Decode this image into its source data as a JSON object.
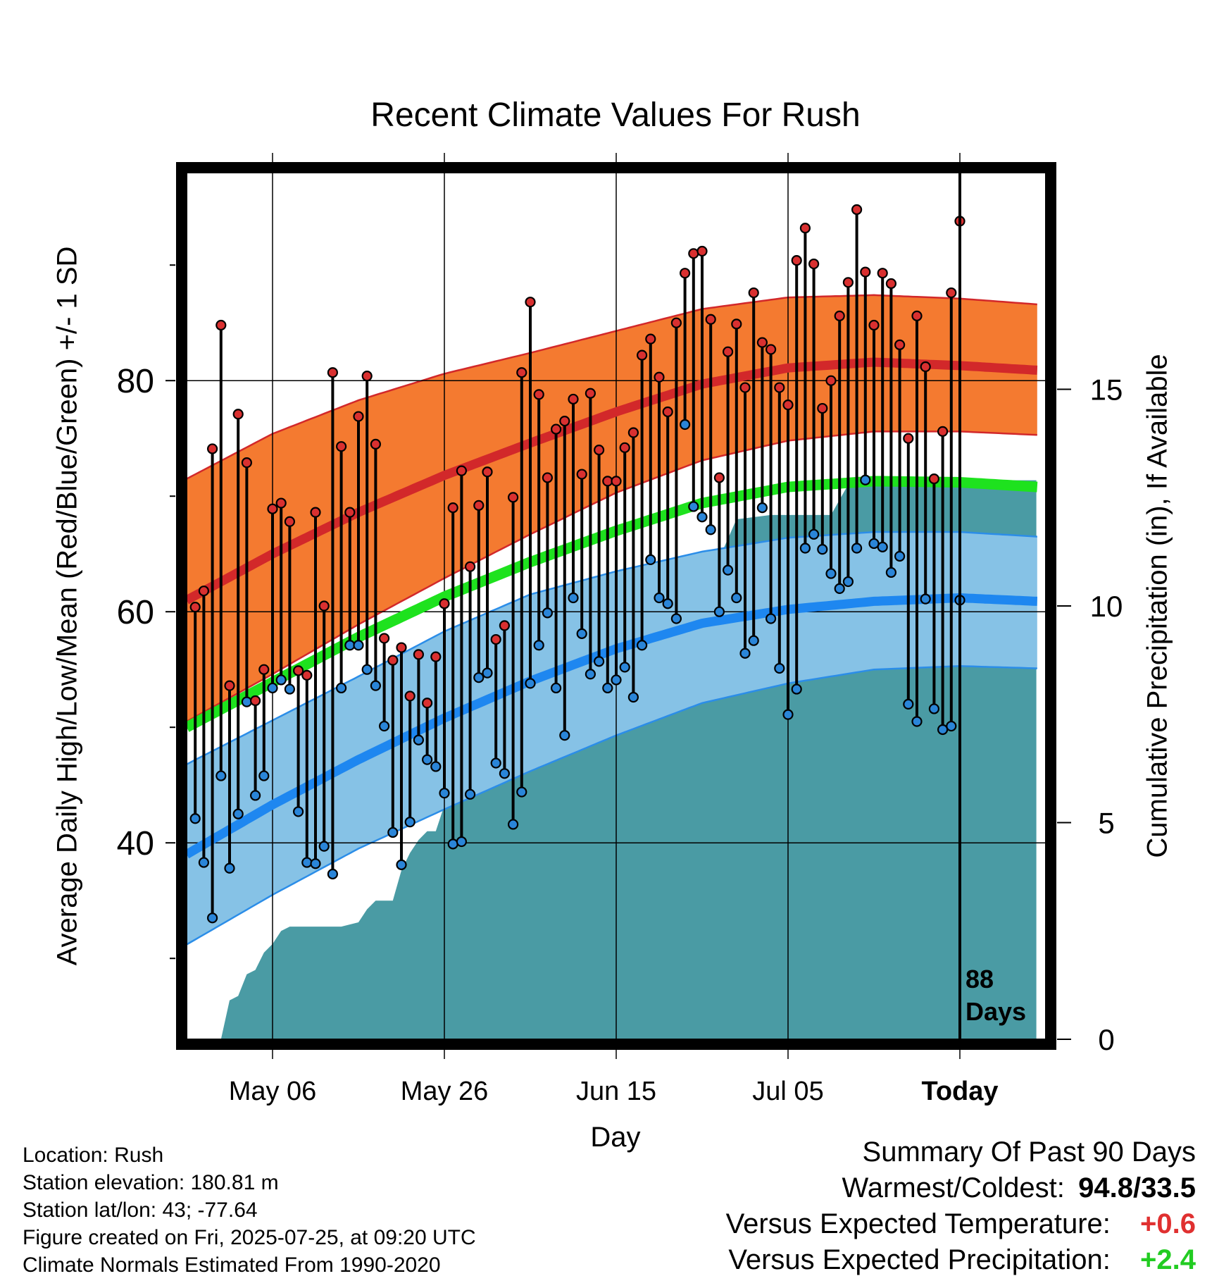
{
  "title": "Recent Climate Values For Rush",
  "axes": {
    "y_left_label": "Average Daily High/Low/Mean (Red/Blue/Green) +/- 1 SD",
    "y_right_label": "Cumulative Precipitation (in), If Available",
    "x_label": "Day",
    "today_label": "Today",
    "days_label": "88\nDays"
  },
  "info": {
    "location": "Location: Rush",
    "elevation": "Station elevation: 180.81 m",
    "latlon": "Station lat/lon: 43; -77.64",
    "created": "Figure created on Fri, 2025-07-25, at 09:20 UTC",
    "normals": "Climate Normals Estimated From 1990-2020"
  },
  "summary": {
    "header": "Summary Of Past 90 Days",
    "warm_cold_label": "Warmest/Coldest:",
    "warm_cold_value": "94.8/33.5",
    "temp_label": "Versus Expected Temperature:",
    "temp_value": "+0.6",
    "precip_label": "Versus Expected Precipitation:",
    "precip_value": "+2.4"
  },
  "colors": {
    "high_band": "#f47a30",
    "high_mean": "#d2282a",
    "low_band": "#86c2e6",
    "low_edge": "#2b8de8",
    "low_mean": "#1e87f0",
    "mean_line": "#1ee21e",
    "precip": "#4a9ba4",
    "high_dot": "#d93030",
    "low_dot": "#2a85d8",
    "plus_temp": "#e03030",
    "plus_precip": "#22cc22"
  },
  "chart_data": {
    "type": "line",
    "x_range_days": [
      -90,
      10
    ],
    "ylim_temp": [
      23,
      98
    ],
    "ylim_precip": [
      0,
      20
    ],
    "y_ticks_temp": [
      40,
      60,
      80
    ],
    "y_minor_ticks_temp": [
      30,
      50,
      70,
      90
    ],
    "y_ticks_precip": [
      0,
      5,
      10,
      15
    ],
    "x_ticks": [
      {
        "day": -80,
        "label": "May 06"
      },
      {
        "day": -60,
        "label": "May 26"
      },
      {
        "day": -40,
        "label": "Jun 15"
      },
      {
        "day": -20,
        "label": "Jul 05"
      },
      {
        "day": 0,
        "label": "Today"
      }
    ],
    "normals": {
      "days": [
        -90,
        -80,
        -70,
        -60,
        -50,
        -40,
        -30,
        -20,
        -10,
        0,
        9
      ],
      "high_mean": [
        61,
        65,
        68.6,
        71.8,
        74.6,
        77.3,
        79.7,
        81.1,
        81.6,
        81.3,
        80.9
      ],
      "high_upper": [
        71.5,
        75.4,
        78.3,
        80.6,
        82.4,
        84.3,
        86.2,
        87.2,
        87.4,
        87.1,
        86.6
      ],
      "high_lower": [
        50.5,
        54.6,
        58.9,
        62.9,
        66.7,
        70.3,
        73.1,
        74.8,
        75.6,
        75.6,
        75.3
      ],
      "low_mean": [
        39,
        43.3,
        47.2,
        50.8,
        54,
        56.8,
        59,
        60.2,
        60.9,
        61.2,
        60.9
      ],
      "low_upper": [
        46.8,
        50.6,
        54.4,
        58.3,
        61.5,
        63.5,
        65.2,
        66.4,
        66.9,
        66.9,
        66.5
      ],
      "low_lower": [
        31.2,
        35.5,
        39.5,
        42.9,
        46.2,
        49.3,
        52.1,
        53.8,
        55,
        55.3,
        55.1
      ],
      "mean": [
        50,
        53.9,
        57.8,
        61.3,
        64.3,
        67,
        69.4,
        70.8,
        71.3,
        71.2,
        70.8
      ]
    },
    "observed": {
      "start_day": -89,
      "high": [
        60.4,
        61.8,
        74.1,
        84.8,
        53.6,
        77.1,
        72.9,
        52.3,
        55,
        68.9,
        69.4,
        67.8,
        54.9,
        54.5,
        68.6,
        60.5,
        80.7,
        74.3,
        68.6,
        76.9,
        80.4,
        74.5,
        57.7,
        55.8,
        56.9,
        52.7,
        56.3,
        52.1,
        56.1,
        60.7,
        69,
        72.2,
        63.9,
        69.2,
        72.1,
        57.6,
        58.8,
        69.9,
        80.7,
        86.8,
        78.8,
        71.6,
        75.8,
        76.5,
        78.4,
        71.9,
        78.9,
        74,
        71.3,
        71.3,
        74.2,
        75.5,
        82.2,
        83.6,
        80.3,
        77.3,
        85,
        89.3,
        91,
        91.2,
        85.3,
        71.6,
        82.5,
        84.9,
        79.4,
        87.6,
        83.3,
        82.7,
        79.4,
        77.9,
        90.4,
        93.2,
        90.1,
        77.6,
        80,
        85.6,
        88.5,
        94.8,
        89.4,
        84.8,
        89.3,
        88.4,
        83.1,
        75,
        85.6,
        81.2,
        71.5,
        75.6,
        87.6,
        93.8
      ],
      "low": [
        42.1,
        38.3,
        33.5,
        45.8,
        37.8,
        42.5,
        52.2,
        44.1,
        45.8,
        53.4,
        54.1,
        53.3,
        42.7,
        38.3,
        38.2,
        39.7,
        37.3,
        53.4,
        57.1,
        57.1,
        55,
        53.6,
        50.1,
        40.9,
        38.1,
        41.8,
        48.9,
        47.2,
        46.6,
        44.3,
        39.9,
        40.1,
        44.2,
        54.3,
        54.7,
        46.9,
        46,
        41.6,
        44.4,
        53.8,
        57.1,
        59.9,
        53.4,
        49.3,
        61.2,
        58.1,
        54.6,
        55.7,
        53.4,
        54.1,
        55.2,
        52.6,
        57.1,
        64.5,
        61.2,
        60.7,
        59.4,
        76.2,
        69.1,
        68.2,
        67.1,
        60,
        63.6,
        61.2,
        56.4,
        57.5,
        69,
        59.4,
        55.1,
        51.1,
        53.3,
        65.5,
        66.7,
        65.4,
        63.3,
        62,
        62.6,
        65.5,
        71.4,
        65.9,
        65.6,
        63.4,
        64.8,
        52,
        50.5,
        61.1,
        51.6,
        49.8,
        50.1,
        61
      ],
      "precip_days": [
        -86,
        -85,
        -84,
        -83,
        -82,
        -81,
        -80,
        -79,
        -78,
        -76,
        -72,
        -70,
        -69,
        -68,
        -66,
        -65,
        -64,
        -63,
        -62,
        -61,
        -59,
        -58,
        -57,
        -56,
        -54,
        -52,
        -50,
        -48,
        -47,
        -44,
        -40,
        -39,
        -38,
        -34,
        -32,
        -30,
        -28,
        -26,
        -22,
        -18,
        -15,
        -13,
        -11,
        8.9
      ],
      "precip_cum": [
        0,
        0.9,
        1,
        1.5,
        1.6,
        2,
        2.2,
        2.5,
        2.6,
        2.6,
        2.6,
        2.7,
        3,
        3.2,
        3.2,
        3.9,
        4.3,
        4.6,
        4.8,
        4.8,
        6,
        6.1,
        6.3,
        6.4,
        6.4,
        6.6,
        6.6,
        7.2,
        7.3,
        7.3,
        7.4,
        10.2,
        10.4,
        10.4,
        10.7,
        11,
        11.1,
        12,
        12.1,
        12.1,
        12.1,
        12.8,
        12.9,
        12.9
      ]
    },
    "today_marker_day": 0,
    "days_count": "88"
  }
}
